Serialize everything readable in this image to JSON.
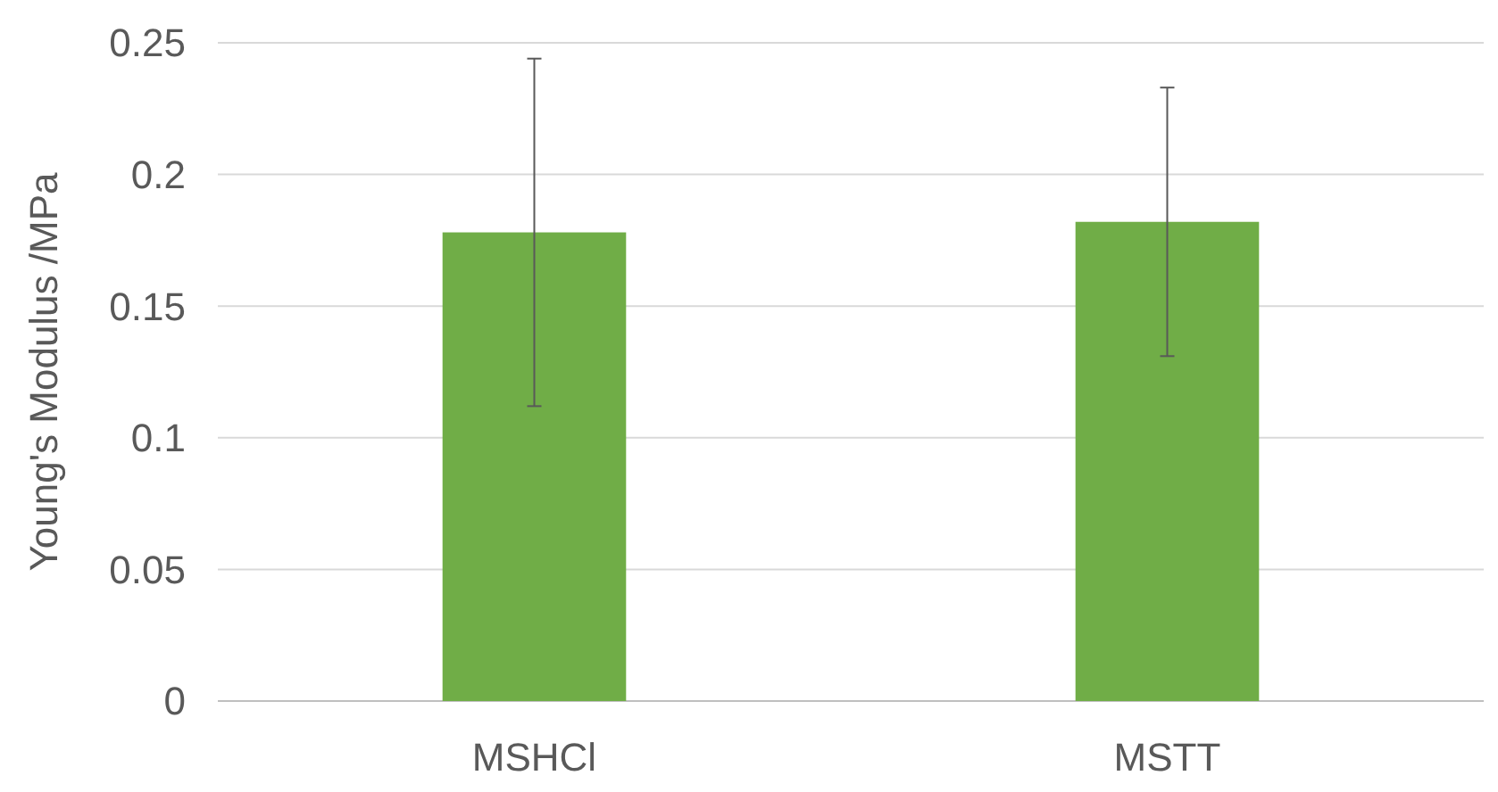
{
  "chart_data": {
    "type": "bar",
    "ylabel": "Young's Modulus /MPa",
    "categories": [
      "MSHCl",
      "MSTT"
    ],
    "values": [
      0.178,
      0.182
    ],
    "errors": [
      0.066,
      0.051
    ],
    "color": "#70ad47",
    "ylim": [
      0,
      0.25
    ],
    "yticks": [
      0,
      0.05,
      0.1,
      0.15,
      0.2,
      0.25
    ],
    "grid": "y"
  }
}
